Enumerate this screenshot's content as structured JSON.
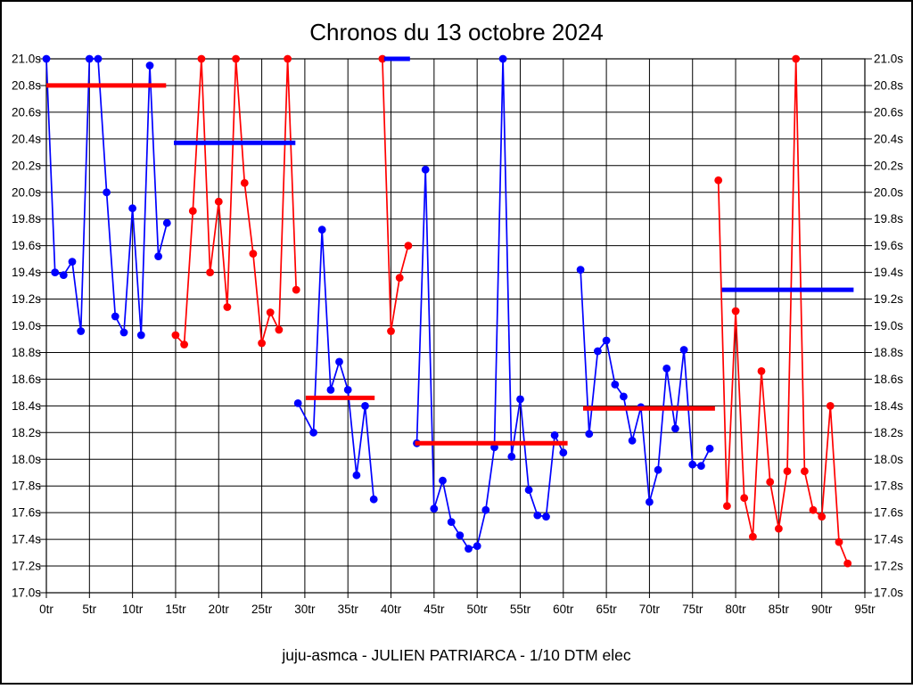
{
  "title": "Chronos du 13 octobre 2024",
  "caption": "juju-asmca - JULIEN PATRIARCA - 1/10 DTM elec",
  "colors": {
    "blue": "#0000ff",
    "red": "#ff0000",
    "grid": "#000000",
    "background": "#ffffff",
    "border": "#000000"
  },
  "chart_data": {
    "type": "line",
    "title": "Chronos du 13 octobre 2024",
    "x_unit": "tr",
    "y_unit": "s",
    "xlim": [
      0,
      95
    ],
    "ylim": [
      17.0,
      21.0
    ],
    "grid": true,
    "top_clip_value": 21.0,
    "x_ticks": [
      0,
      5,
      10,
      15,
      20,
      25,
      30,
      35,
      40,
      45,
      50,
      55,
      60,
      65,
      70,
      75,
      80,
      85,
      90,
      95
    ],
    "x_tick_labels": [
      "0tr",
      "5tr",
      "10tr",
      "15tr",
      "20tr",
      "25tr",
      "30tr",
      "35tr",
      "40tr",
      "45tr",
      "50tr",
      "55tr",
      "60tr",
      "65tr",
      "70tr",
      "75tr",
      "80tr",
      "85tr",
      "90tr",
      "95tr"
    ],
    "y_ticks": [
      21.0,
      20.8,
      20.6,
      20.4,
      20.2,
      20.0,
      19.8,
      19.6,
      19.4,
      19.2,
      19.0,
      18.8,
      18.6,
      18.4,
      18.2,
      18.0,
      17.8,
      17.6,
      17.4,
      17.2,
      17.0
    ],
    "y_tick_labels": [
      "21.0s",
      "20.8s",
      "20.6s",
      "20.4s",
      "20.2s",
      "20.0s",
      "19.8s",
      "19.6s",
      "19.4s",
      "19.2s",
      "19.0s",
      "18.8s",
      "18.6s",
      "18.4s",
      "18.2s",
      "18.0s",
      "17.8s",
      "17.6s",
      "17.4s",
      "17.2s",
      "17.0s"
    ],
    "stints": [
      {
        "name": "stint-1",
        "color": "blue",
        "points": [
          [
            0,
            21.0
          ],
          [
            1,
            19.4
          ],
          [
            2,
            19.38
          ],
          [
            3,
            19.48
          ],
          [
            4,
            18.96
          ],
          [
            5,
            21.0
          ],
          [
            6,
            21.0
          ],
          [
            7,
            20.0
          ],
          [
            8,
            19.07
          ],
          [
            9,
            18.95
          ],
          [
            10,
            19.88
          ],
          [
            11,
            18.93
          ],
          [
            12,
            20.95
          ],
          [
            13,
            19.52
          ],
          [
            14,
            19.77
          ]
        ],
        "average_line": {
          "value": 20.8,
          "x_from": 0,
          "x_to": 13.9,
          "color": "red"
        }
      },
      {
        "name": "stint-2",
        "color": "red",
        "points": [
          [
            15,
            18.93
          ],
          [
            16,
            18.86
          ],
          [
            17,
            19.86
          ],
          [
            18,
            21.0
          ],
          [
            19,
            19.4
          ],
          [
            20,
            19.93
          ],
          [
            21,
            19.14
          ],
          [
            22,
            21.0
          ],
          [
            23,
            20.07
          ],
          [
            24,
            19.54
          ],
          [
            25,
            18.87
          ],
          [
            26,
            19.1
          ],
          [
            27,
            18.97
          ],
          [
            28,
            21.0
          ],
          [
            29,
            19.27
          ]
        ],
        "average_line": {
          "value": 20.37,
          "x_from": 14.8,
          "x_to": 28.9,
          "color": "blue"
        }
      },
      {
        "name": "stint-3",
        "color": "blue",
        "points": [
          [
            29.2,
            18.42
          ],
          [
            31,
            18.2
          ],
          [
            32,
            19.72
          ],
          [
            33,
            18.52
          ],
          [
            34,
            18.73
          ],
          [
            35,
            18.52
          ],
          [
            36,
            17.88
          ],
          [
            37,
            18.4
          ],
          [
            38,
            17.7
          ]
        ],
        "average_line": {
          "value": 18.46,
          "x_from": 30.1,
          "x_to": 38.1,
          "color": "red"
        }
      },
      {
        "name": "stint-4",
        "color": "red",
        "points": [
          [
            39,
            21.0
          ],
          [
            40,
            18.96
          ],
          [
            41,
            19.36
          ],
          [
            42,
            19.6
          ]
        ],
        "average_line": {
          "value": 21.0,
          "x_from": 39.2,
          "x_to": 42.2,
          "color": "blue"
        }
      },
      {
        "name": "stint-5",
        "color": "blue",
        "points": [
          [
            43,
            18.12
          ],
          [
            44,
            20.17
          ],
          [
            45,
            17.63
          ],
          [
            46,
            17.84
          ],
          [
            47,
            17.53
          ],
          [
            48,
            17.43
          ],
          [
            49,
            17.33
          ],
          [
            50,
            17.35
          ],
          [
            51,
            17.62
          ],
          [
            52,
            18.09
          ],
          [
            53,
            21.0
          ],
          [
            54,
            18.02
          ],
          [
            55,
            18.45
          ],
          [
            56,
            17.77
          ],
          [
            57,
            17.58
          ],
          [
            58,
            17.57
          ],
          [
            59,
            18.18
          ],
          [
            60,
            18.05
          ]
        ],
        "average_line": {
          "value": 18.12,
          "x_from": 42.8,
          "x_to": 60.5,
          "color": "red"
        }
      },
      {
        "name": "stint-6",
        "color": "blue",
        "points": [
          [
            62,
            19.42
          ],
          [
            63,
            18.19
          ],
          [
            64,
            18.81
          ],
          [
            65,
            18.89
          ],
          [
            66,
            18.56
          ],
          [
            67,
            18.47
          ],
          [
            68,
            18.14
          ],
          [
            69,
            18.39
          ],
          [
            70,
            17.68
          ],
          [
            71,
            17.92
          ],
          [
            72,
            18.68
          ],
          [
            73,
            18.23
          ],
          [
            74,
            18.82
          ],
          [
            75,
            17.96
          ],
          [
            76,
            17.95
          ],
          [
            77,
            18.08
          ]
        ],
        "average_line": {
          "value": 18.38,
          "x_from": 62.3,
          "x_to": 77.6,
          "color": "red"
        }
      },
      {
        "name": "stint-7",
        "color": "red",
        "points": [
          [
            78,
            20.09
          ],
          [
            79,
            17.65
          ],
          [
            80,
            19.11
          ],
          [
            81,
            17.71
          ],
          [
            82,
            17.42
          ],
          [
            83,
            18.66
          ],
          [
            84,
            17.83
          ],
          [
            85,
            17.48
          ],
          [
            86,
            17.91
          ],
          [
            87,
            21.0
          ],
          [
            88,
            17.91
          ],
          [
            89,
            17.62
          ],
          [
            90,
            17.57
          ],
          [
            91,
            18.4
          ],
          [
            92,
            17.38
          ],
          [
            93,
            17.22
          ]
        ],
        "average_line": {
          "value": 19.27,
          "x_from": 78.4,
          "x_to": 93.7,
          "color": "blue"
        }
      }
    ]
  }
}
